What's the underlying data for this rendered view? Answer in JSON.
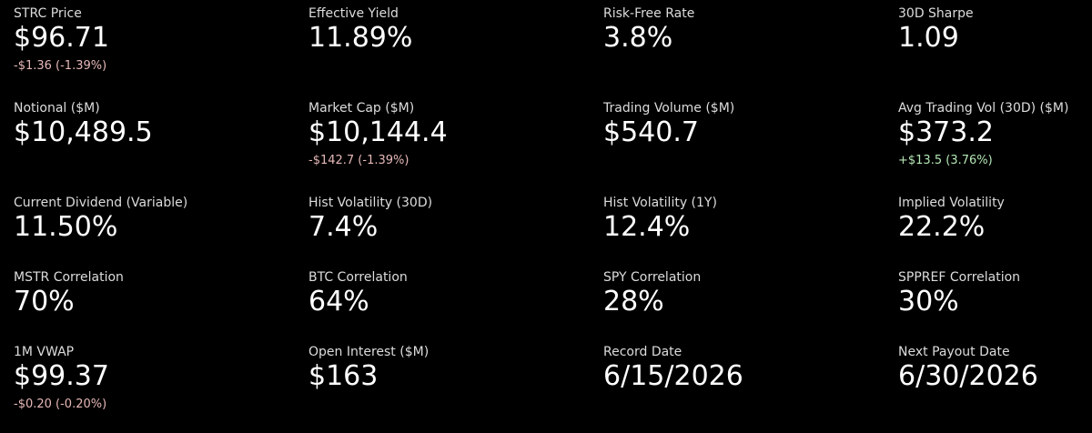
{
  "metrics": {
    "rows": [
      [
        {
          "label": "STRC Price",
          "value": "$96.71",
          "change": "-$1.36 (-1.39%)",
          "change_color": "#e6b8b8"
        },
        {
          "label": "Effective Yield",
          "value": "11.89%"
        },
        {
          "label": "Risk-Free Rate",
          "value": "3.8%"
        },
        {
          "label": "30D Sharpe",
          "value": "1.09"
        }
      ],
      [
        {
          "label": "Notional ($M)",
          "value": "$10,489.5"
        },
        {
          "label": "Market Cap ($M)",
          "value": "$10,144.4",
          "change": "-$142.7 (-1.39%)",
          "change_color": "#e6b8b8"
        },
        {
          "label": "Trading Volume ($M)",
          "value": "$540.7"
        },
        {
          "label": "Avg Trading Vol (30D) ($M)",
          "value": "$373.2",
          "change": "+$13.5 (3.76%)",
          "change_color": "#b4e6b4"
        }
      ],
      [
        {
          "label": "Current Dividend (Variable)",
          "value": "11.50%"
        },
        {
          "label": "Hist Volatility (30D)",
          "value": "7.4%"
        },
        {
          "label": "Hist Volatility (1Y)",
          "value": "12.4%"
        },
        {
          "label": "Implied Volatility",
          "value": "22.2%"
        }
      ],
      [
        {
          "label": "MSTR Correlation",
          "value": "70%"
        },
        {
          "label": "BTC Correlation",
          "value": "64%"
        },
        {
          "label": "SPY Correlation",
          "value": "28%"
        },
        {
          "label": "SPPREF Correlation",
          "value": "30%"
        }
      ],
      [
        {
          "label": "1M VWAP",
          "value": "$99.37",
          "change": "-$0.20 (-0.20%)",
          "change_color": "#e6b8b8"
        },
        {
          "label": "Open Interest ($M)",
          "value": "$163"
        },
        {
          "label": "Record Date",
          "value": "6/15/2026"
        },
        {
          "label": "Next Payout Date",
          "value": "6/30/2026"
        }
      ]
    ]
  }
}
